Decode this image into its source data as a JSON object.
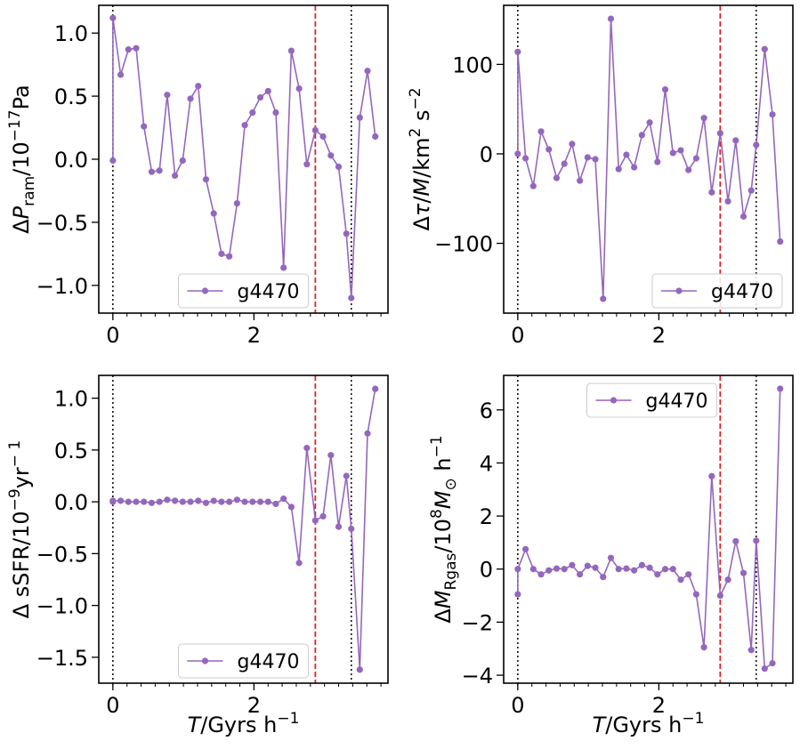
{
  "chart_data": [
    {
      "type": "line",
      "ylabel": "ΔP_ram/10^-17Pa",
      "xlim": [
        -0.2,
        3.9
      ],
      "ylim": [
        -1.22,
        1.22
      ],
      "xticks": [
        0,
        2
      ],
      "yticks": [
        -1.0,
        -0.5,
        0.0,
        0.5,
        1.0
      ],
      "yticklabels": [
        "−1.0",
        "−0.5",
        "0.0",
        "0.5",
        "1.0"
      ],
      "vlines": {
        "dotted": [
          0.0,
          3.38
        ],
        "dashed": [
          2.87
        ]
      },
      "legend": {
        "position": "lower-center",
        "label": "g4470"
      },
      "series": [
        {
          "name": "g4470",
          "color": "#9467bd",
          "x": [
            0.0,
            0.0,
            0.11,
            0.22,
            0.33,
            0.44,
            0.55,
            0.66,
            0.77,
            0.88,
            0.99,
            1.1,
            1.21,
            1.32,
            1.43,
            1.54,
            1.65,
            1.76,
            1.87,
            1.98,
            2.09,
            2.2,
            2.31,
            2.42,
            2.53,
            2.64,
            2.75,
            2.87,
            2.98,
            3.09,
            3.2,
            3.31,
            3.38,
            3.5,
            3.61,
            3.72
          ],
          "y": [
            -0.01,
            1.12,
            0.67,
            0.87,
            0.88,
            0.26,
            -0.1,
            -0.09,
            0.51,
            -0.13,
            -0.01,
            0.48,
            0.58,
            -0.16,
            -0.43,
            -0.75,
            -0.77,
            -0.35,
            0.27,
            0.37,
            0.49,
            0.54,
            0.37,
            -0.86,
            0.86,
            0.56,
            -0.04,
            0.23,
            0.18,
            0.03,
            -0.06,
            -0.59,
            -1.1,
            0.33,
            0.7,
            0.18
          ]
        }
      ]
    },
    {
      "type": "line",
      "ylabel": "Δτ/M/km² s⁻²",
      "xlim": [
        -0.2,
        3.9
      ],
      "ylim": [
        -178,
        166
      ],
      "xticks": [
        0,
        2
      ],
      "yticks": [
        -100,
        0,
        100
      ],
      "yticklabels": [
        "−100",
        "0",
        "100"
      ],
      "vlines": {
        "dotted": [
          0.0,
          3.38
        ],
        "dashed": [
          2.87
        ]
      },
      "legend": {
        "position": "lower-right",
        "label": "g4470"
      },
      "series": [
        {
          "name": "g4470",
          "color": "#9467bd",
          "x": [
            0.0,
            0.0,
            0.11,
            0.22,
            0.33,
            0.44,
            0.55,
            0.66,
            0.77,
            0.88,
            0.99,
            1.1,
            1.21,
            1.32,
            1.43,
            1.54,
            1.65,
            1.76,
            1.87,
            1.98,
            2.09,
            2.2,
            2.31,
            2.42,
            2.53,
            2.64,
            2.75,
            2.87,
            2.98,
            3.09,
            3.2,
            3.31,
            3.38,
            3.5,
            3.61,
            3.72
          ],
          "y": [
            0,
            114,
            -5,
            -36,
            25,
            5,
            -27,
            -11,
            11,
            -30,
            -4,
            -6,
            -162,
            151,
            -17,
            -1,
            -15,
            21,
            35,
            -9,
            72,
            1,
            4,
            -18,
            -5,
            40,
            -43,
            23,
            -53,
            15,
            -70,
            -41,
            10,
            117,
            44,
            -98
          ]
        }
      ]
    },
    {
      "type": "line",
      "ylabel": "Δ sSFR/10^-9yr^-1",
      "xlabel": "T/Gyrs h⁻¹",
      "xlim": [
        -0.2,
        3.9
      ],
      "ylim": [
        -1.75,
        1.22
      ],
      "xticks": [
        0,
        2
      ],
      "yticks": [
        -1.5,
        -1.0,
        -0.5,
        0.0,
        0.5,
        1.0
      ],
      "yticklabels": [
        "−1.5",
        "−1.0",
        "−0.5",
        "0.0",
        "0.5",
        "1.0"
      ],
      "vlines": {
        "dotted": [
          0.0,
          3.38
        ],
        "dashed": [
          2.87
        ]
      },
      "legend": {
        "position": "lower-center",
        "label": "g4470"
      },
      "series": [
        {
          "name": "g4470",
          "color": "#9467bd",
          "x": [
            0.0,
            0.0,
            0.11,
            0.22,
            0.33,
            0.44,
            0.55,
            0.66,
            0.77,
            0.88,
            0.99,
            1.1,
            1.21,
            1.32,
            1.43,
            1.54,
            1.65,
            1.76,
            1.87,
            1.98,
            2.09,
            2.2,
            2.31,
            2.42,
            2.53,
            2.64,
            2.75,
            2.87,
            2.98,
            3.09,
            3.2,
            3.31,
            3.38,
            3.5,
            3.61,
            3.72
          ],
          "y": [
            0.0,
            0.01,
            0.01,
            0.0,
            0.0,
            0.0,
            -0.01,
            0.0,
            0.02,
            0.01,
            0.0,
            0.0,
            0.01,
            -0.01,
            0.01,
            0.0,
            0.0,
            0.02,
            0.0,
            0.0,
            0.0,
            0.0,
            -0.02,
            0.03,
            -0.05,
            -0.59,
            0.52,
            -0.18,
            -0.14,
            0.45,
            -0.24,
            0.25,
            -0.26,
            -1.62,
            0.66,
            1.09
          ]
        }
      ]
    },
    {
      "type": "line",
      "ylabel": "ΔM_Rgas/10^8 M_⊙ h^-1",
      "xlabel": "T/Gyrs h⁻¹",
      "xlim": [
        -0.2,
        3.9
      ],
      "ylim": [
        -4.3,
        7.3
      ],
      "xticks": [
        0,
        2
      ],
      "yticks": [
        -4,
        -2,
        0,
        2,
        4,
        6
      ],
      "yticklabels": [
        "−4",
        "−2",
        "0",
        "2",
        "4",
        "6"
      ],
      "vlines": {
        "dotted": [
          0.0,
          3.38
        ],
        "dashed": [
          2.87
        ]
      },
      "legend": {
        "position": "upper-center",
        "label": "g4470"
      },
      "series": [
        {
          "name": "g4470",
          "color": "#9467bd",
          "x": [
            0.0,
            0.0,
            0.11,
            0.22,
            0.33,
            0.44,
            0.55,
            0.66,
            0.77,
            0.88,
            0.99,
            1.1,
            1.21,
            1.32,
            1.43,
            1.54,
            1.65,
            1.76,
            1.87,
            1.98,
            2.09,
            2.2,
            2.31,
            2.42,
            2.53,
            2.64,
            2.75,
            2.87,
            2.98,
            3.09,
            3.2,
            3.31,
            3.38,
            3.5,
            3.61,
            3.72
          ],
          "y": [
            -0.95,
            0.0,
            0.75,
            0.0,
            -0.2,
            -0.05,
            0.02,
            0.0,
            0.15,
            -0.2,
            0.12,
            0.05,
            -0.3,
            0.42,
            0.0,
            0.02,
            -0.05,
            0.15,
            0.05,
            -0.2,
            0.0,
            0.0,
            -0.4,
            -0.2,
            -0.95,
            -2.95,
            3.5,
            -1.0,
            -0.4,
            1.05,
            -0.15,
            -3.05,
            1.07,
            -3.75,
            -3.55,
            6.8
          ]
        }
      ]
    }
  ]
}
